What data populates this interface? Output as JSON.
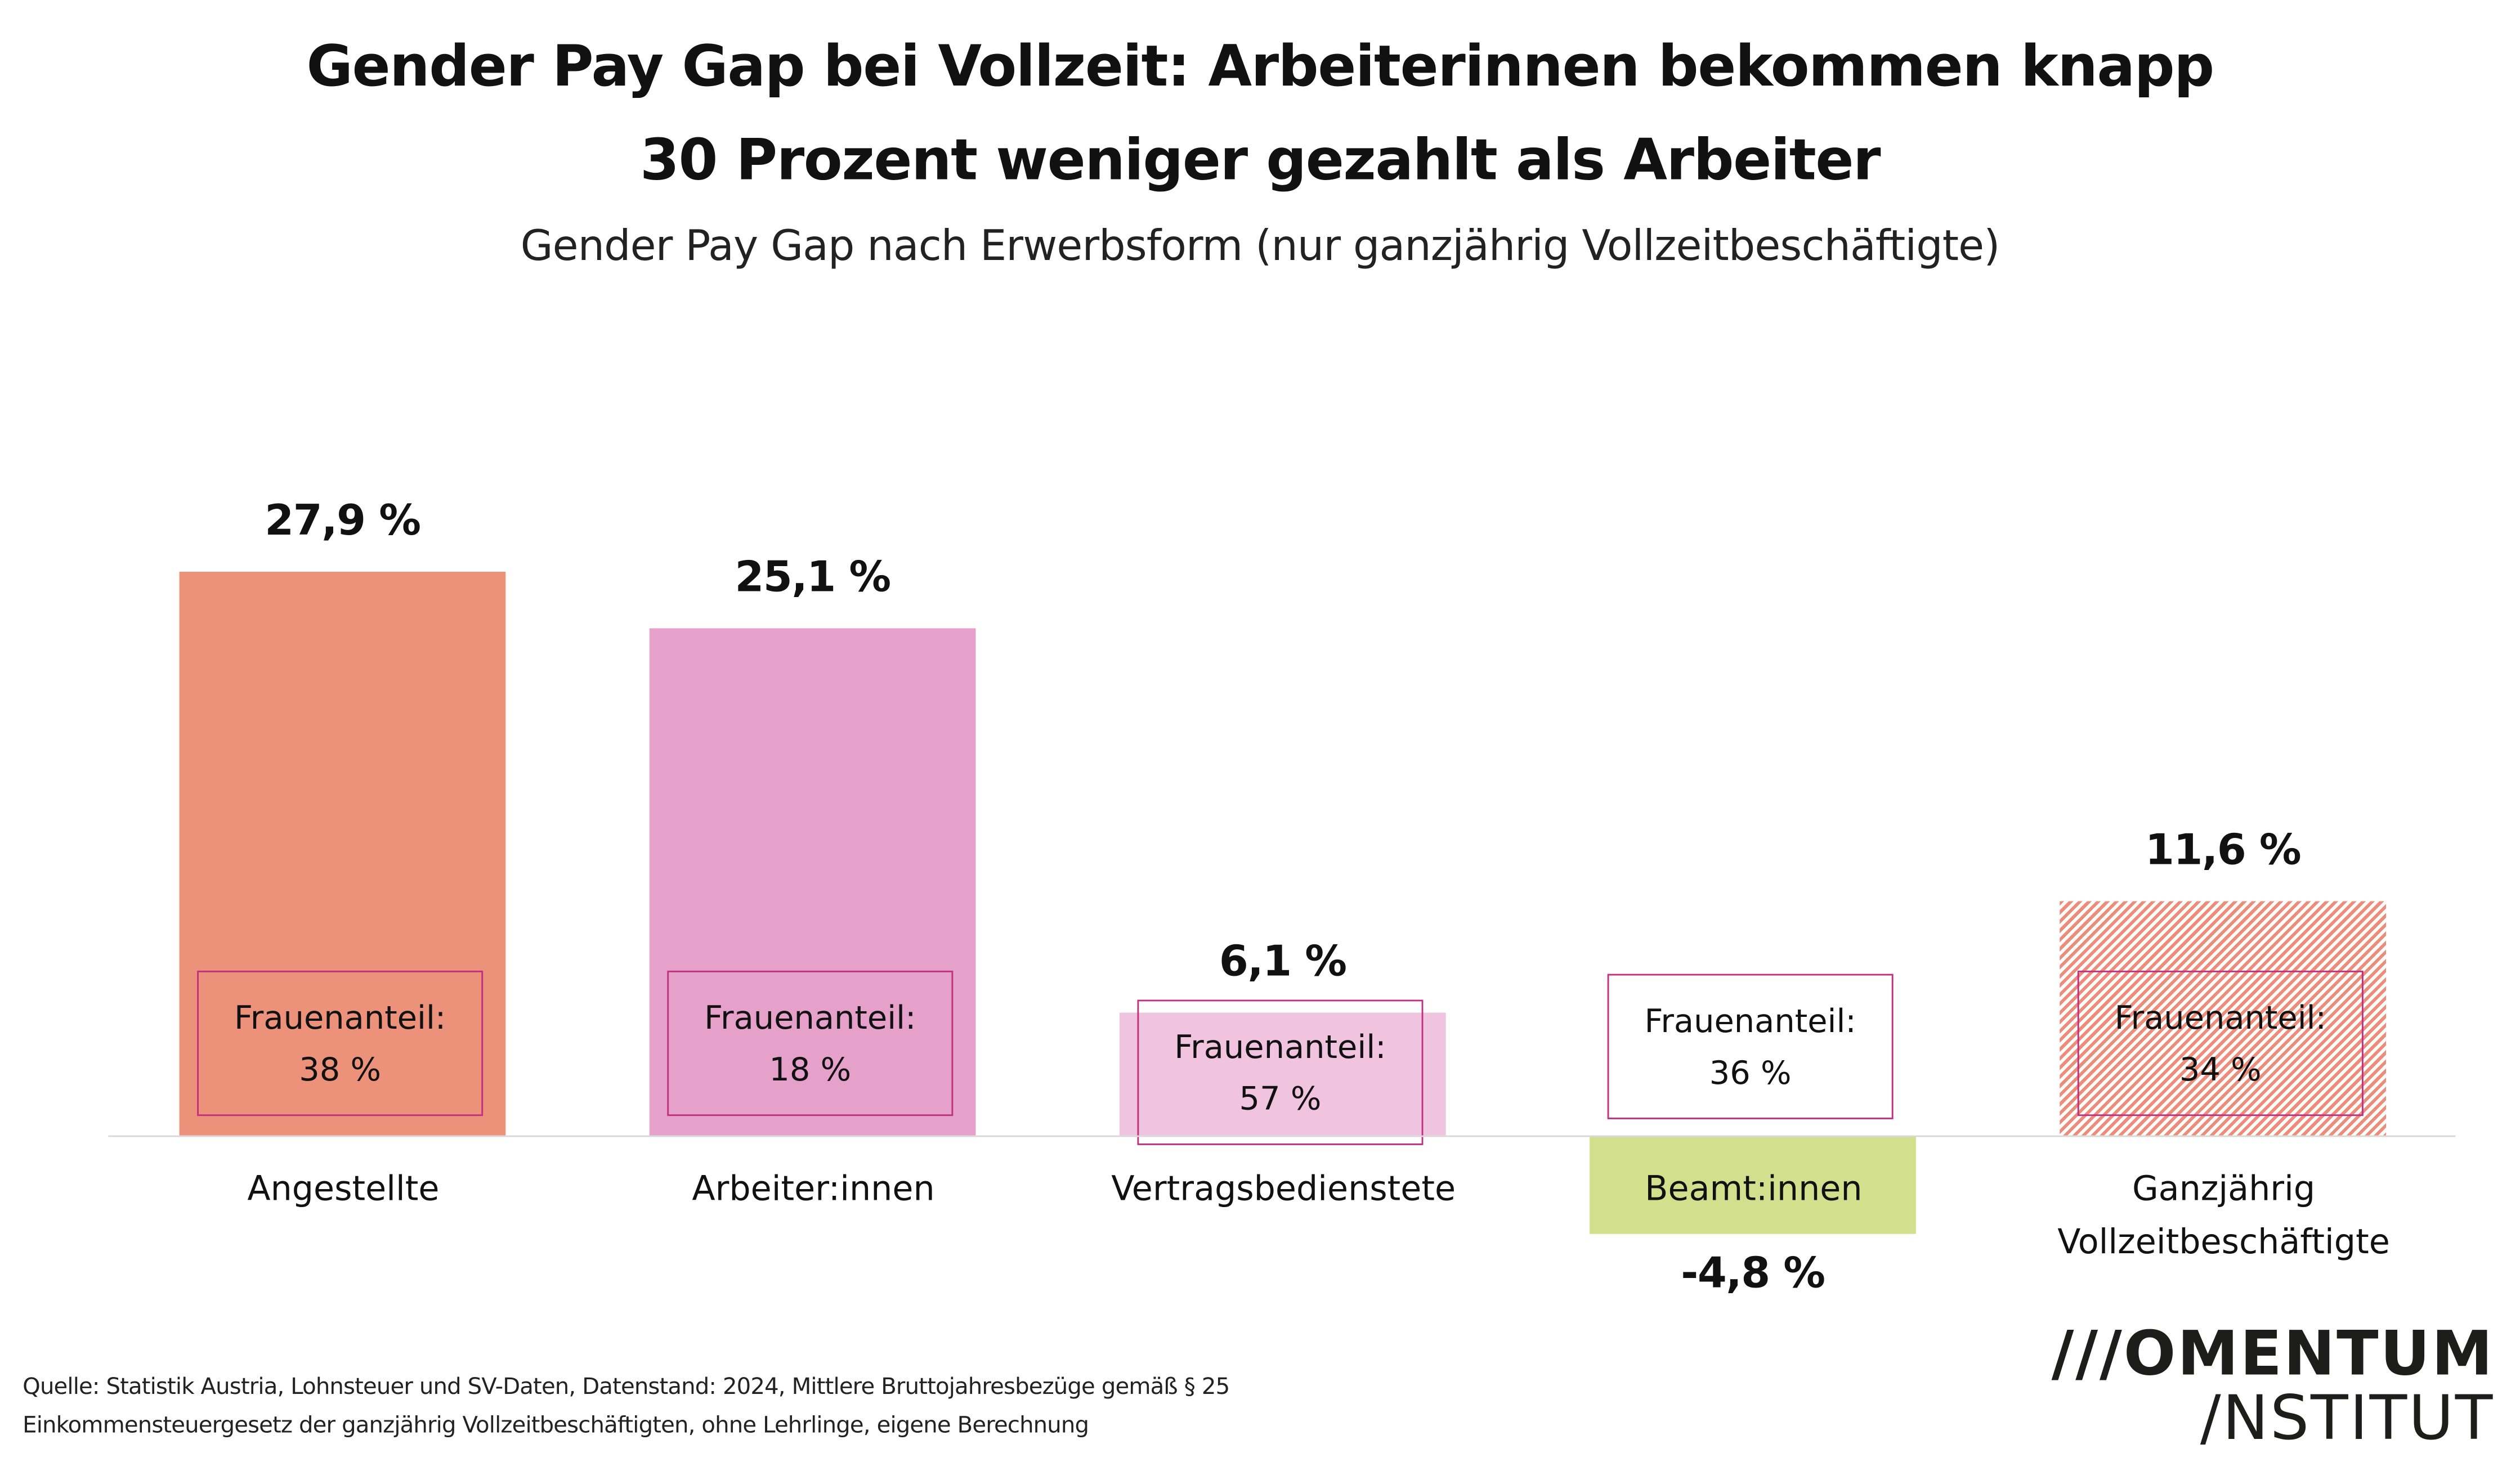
{
  "title_line1": "Gender Pay Gap bei Vollzeit: Arbeiterinnen bekommen knapp",
  "title_line2": "30 Prozent weniger gezahlt als Arbeiter",
  "subtitle": "Gender Pay Gap nach Erwerbsform (nur ganzjährig Vollzeitbeschäftigte)",
  "chart_data": {
    "type": "bar",
    "title": "Gender Pay Gap bei Vollzeit: Arbeiterinnen bekommen knapp 30 Prozent weniger gezahlt als Arbeiter",
    "subtitle": "Gender Pay Gap nach Erwerbsform (nur ganzjährig Vollzeitbeschäftigte)",
    "categories": [
      "Angestellte",
      "Arbeiter:innen",
      "Vertragsbedienstete",
      "Beamt:innen",
      "Ganzjährig Vollzeitbeschäftigte"
    ],
    "category_lines": [
      [
        "Angestellte"
      ],
      [
        "Arbeiter:innen"
      ],
      [
        "Vertragsbedienstete"
      ],
      [
        "Beamt:innen"
      ],
      [
        "Ganzjährig",
        "Vollzeitbeschäftigte"
      ]
    ],
    "values": [
      27.9,
      25.1,
      6.1,
      -4.8,
      11.6
    ],
    "value_labels": [
      "27,9 %",
      "25,1 %",
      "6,1 %",
      "-4,8 %",
      "11,6 %"
    ],
    "frauenanteil_label": "Frauenanteil:",
    "frauenanteil": [
      "38 %",
      "18 %",
      "57 %",
      "36 %",
      "34 %"
    ],
    "colors": [
      "#EC927A",
      "#E6A1CB",
      "#F0C3DE",
      "#D2DF8C",
      "#EE8C7A"
    ],
    "hatched": [
      false,
      false,
      false,
      false,
      true
    ],
    "box_border_color": "#C0307F",
    "ylim": [
      -4.8,
      27.9
    ],
    "grid": false,
    "xlabel": "",
    "ylabel": ""
  },
  "footer": {
    "line1": "Quelle: Statistik Austria, Lohnsteuer und SV-Daten, Datenstand: 2024, Mittlere Bruttojahresbezüge gemäß § 25",
    "line2": "Einkommensteuergesetz der ganzjährig Vollzeitbeschäftigten, ohne Lehrlinge, eigene Berechnung"
  },
  "logo": {
    "line1": "///OMENTUM",
    "line2": "/NSTITUT"
  }
}
